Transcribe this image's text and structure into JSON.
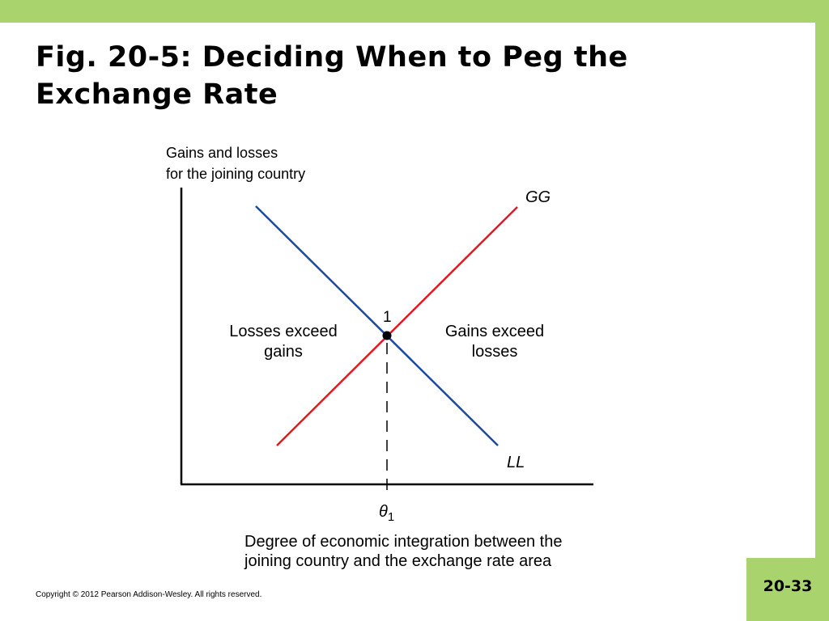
{
  "slide": {
    "title_line1": "Fig. 20-5: Deciding When to Peg the",
    "title_line2": "Exchange Rate",
    "copyright": "Copyright © 2012 Pearson Addison-Wesley. All rights reserved.",
    "page_number": "20-33",
    "accent_color": "#a9d36c"
  },
  "diagram": {
    "y_axis_label_line1": "Gains and losses",
    "y_axis_label_line2": "for the joining country",
    "x_axis_label_line1": "Degree of economic integration between the",
    "x_axis_label_line2": "joining country and the exchange rate area",
    "curves": [
      {
        "name": "GG",
        "color": "#e8171e"
      },
      {
        "name": "LL",
        "color": "#1c4aa0"
      }
    ],
    "intersection_label": "1",
    "region_left_line1": "Losses exceed",
    "region_left_line2": "gains",
    "region_right_line1": "Gains exceed",
    "region_right_line2": "losses",
    "theta_symbol": "θ",
    "theta_subscript": "1"
  }
}
